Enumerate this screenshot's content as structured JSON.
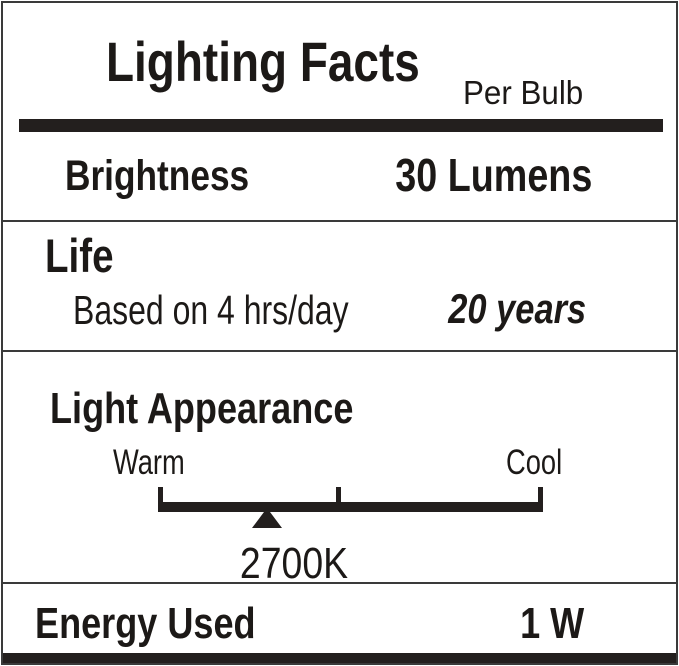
{
  "label": {
    "title": "Lighting Facts",
    "subtitle": "Per Bulb",
    "brightness": {
      "label": "Brightness",
      "value": "30 Lumens"
    },
    "life": {
      "label": "Life",
      "note": "Based on 4 hrs/day",
      "value": "20 years"
    },
    "light_appearance": {
      "label": "Light Appearance",
      "scale_left": "Warm",
      "scale_right": "Cool",
      "marker_value": "2700K",
      "marker_position_pct": 28
    },
    "energy": {
      "label": "Energy Used",
      "value": "1 W"
    },
    "colors": {
      "ink": "#1c1917",
      "bar": "#231f1e",
      "border": "#3a3a3a",
      "background": "#ffffff"
    }
  }
}
